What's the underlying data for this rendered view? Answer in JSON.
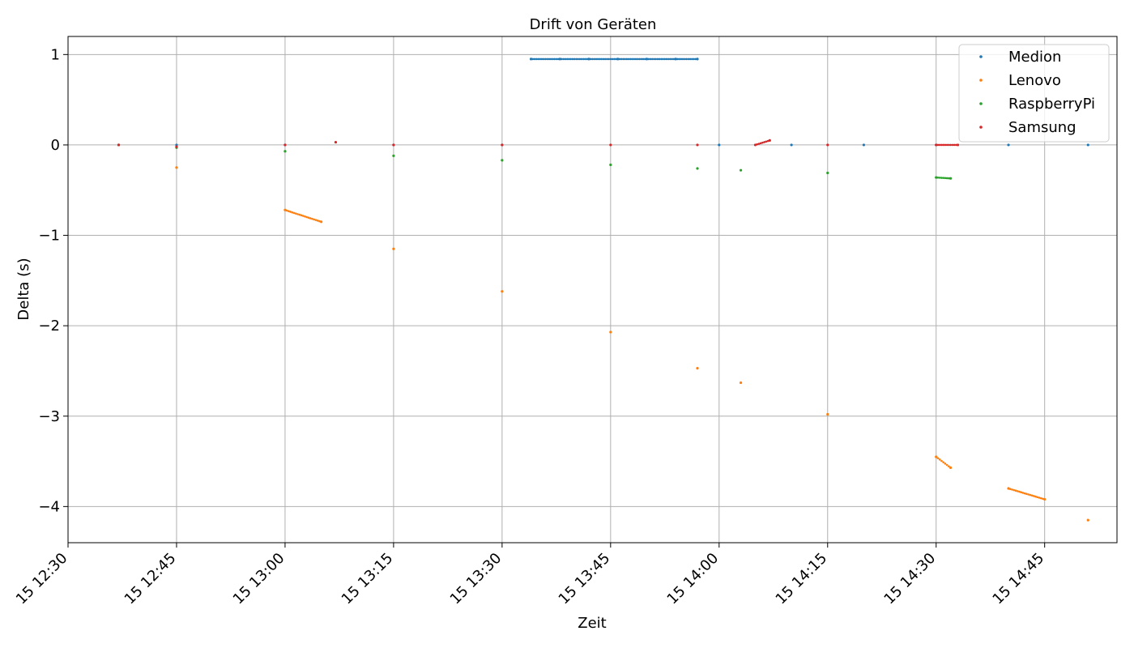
{
  "chart_data": {
    "type": "scatter",
    "title": "Drift von Geräten",
    "xlabel": "Zeit",
    "ylabel": "Delta (s)",
    "x_axis_type": "time",
    "xlim": [
      "12:30",
      "14:55"
    ],
    "ylim": [
      -4.4,
      1.2
    ],
    "grid": true,
    "legend_position": "top-right",
    "x_ticks": [
      {
        "time": "12:30",
        "label": "15 12:30"
      },
      {
        "time": "12:45",
        "label": "15 12:45"
      },
      {
        "time": "13:00",
        "label": "15 13:00"
      },
      {
        "time": "13:15",
        "label": "15 13:15"
      },
      {
        "time": "13:30",
        "label": "15 13:30"
      },
      {
        "time": "13:45",
        "label": "15 13:45"
      },
      {
        "time": "14:00",
        "label": "15 14:00"
      },
      {
        "time": "14:15",
        "label": "15 14:15"
      },
      {
        "time": "14:30",
        "label": "15 14:30"
      },
      {
        "time": "14:45",
        "label": "15 14:45"
      }
    ],
    "y_ticks": [
      {
        "value": 1,
        "label": "1"
      },
      {
        "value": 0,
        "label": "0"
      },
      {
        "value": -1,
        "label": "−1"
      },
      {
        "value": -2,
        "label": "−2"
      },
      {
        "value": -3,
        "label": "−3"
      },
      {
        "value": -4,
        "label": "−4"
      }
    ],
    "series": [
      {
        "name": "Medion",
        "color": "#1f77b4",
        "points": [
          [
            "12:37",
            0.0
          ],
          [
            "12:45",
            0.0
          ],
          [
            "13:00",
            0.0
          ],
          [
            "13:15",
            0.0
          ],
          [
            "13:30",
            0.0
          ],
          [
            "13:34",
            0.95
          ],
          [
            "13:38",
            0.95
          ],
          [
            "13:42",
            0.95
          ],
          [
            "13:46",
            0.95
          ],
          [
            "13:50",
            0.95
          ],
          [
            "13:54",
            0.95
          ],
          [
            "13:57",
            0.95
          ],
          [
            "14:00",
            0.0
          ],
          [
            "14:10",
            0.0
          ],
          [
            "14:20",
            0.0
          ],
          [
            "14:30",
            0.0
          ],
          [
            "14:40",
            0.0
          ],
          [
            "14:51",
            0.0
          ]
        ]
      },
      {
        "name": "Lenovo",
        "color": "#ff7f0e",
        "points": [
          [
            "12:37",
            0.0
          ],
          [
            "12:45",
            -0.25
          ],
          [
            "13:00",
            -0.72
          ],
          [
            "13:05",
            -0.85
          ],
          [
            "13:15",
            -1.15
          ],
          [
            "13:30",
            -1.62
          ],
          [
            "13:45",
            -2.07
          ],
          [
            "13:57",
            -2.47
          ],
          [
            "14:03",
            -2.63
          ],
          [
            "14:15",
            -2.98
          ],
          [
            "14:30",
            -3.45
          ],
          [
            "14:32",
            -3.57
          ],
          [
            "14:40",
            -3.8
          ],
          [
            "14:45",
            -3.92
          ],
          [
            "14:51",
            -4.15
          ]
        ]
      },
      {
        "name": "RaspberryPi",
        "color": "#2ca02c",
        "points": [
          [
            "12:37",
            0.0
          ],
          [
            "12:45",
            -0.03
          ],
          [
            "13:00",
            -0.07
          ],
          [
            "13:15",
            -0.12
          ],
          [
            "13:30",
            -0.17
          ],
          [
            "13:45",
            -0.22
          ],
          [
            "13:57",
            -0.26
          ],
          [
            "14:03",
            -0.28
          ],
          [
            "14:15",
            -0.31
          ],
          [
            "14:30",
            -0.36
          ],
          [
            "14:32",
            -0.37
          ]
        ]
      },
      {
        "name": "Samsung",
        "color": "#d62728",
        "points": [
          [
            "12:37",
            0.0
          ],
          [
            "12:45",
            -0.02
          ],
          [
            "13:00",
            0.0
          ],
          [
            "13:07",
            0.03
          ],
          [
            "13:15",
            0.0
          ],
          [
            "13:30",
            0.0
          ],
          [
            "13:45",
            0.0
          ],
          [
            "13:57",
            0.0
          ],
          [
            "14:05",
            0.0
          ],
          [
            "14:07",
            0.05
          ],
          [
            "14:15",
            0.0
          ],
          [
            "14:30",
            0.0
          ],
          [
            "14:33",
            0.0
          ]
        ]
      }
    ]
  }
}
